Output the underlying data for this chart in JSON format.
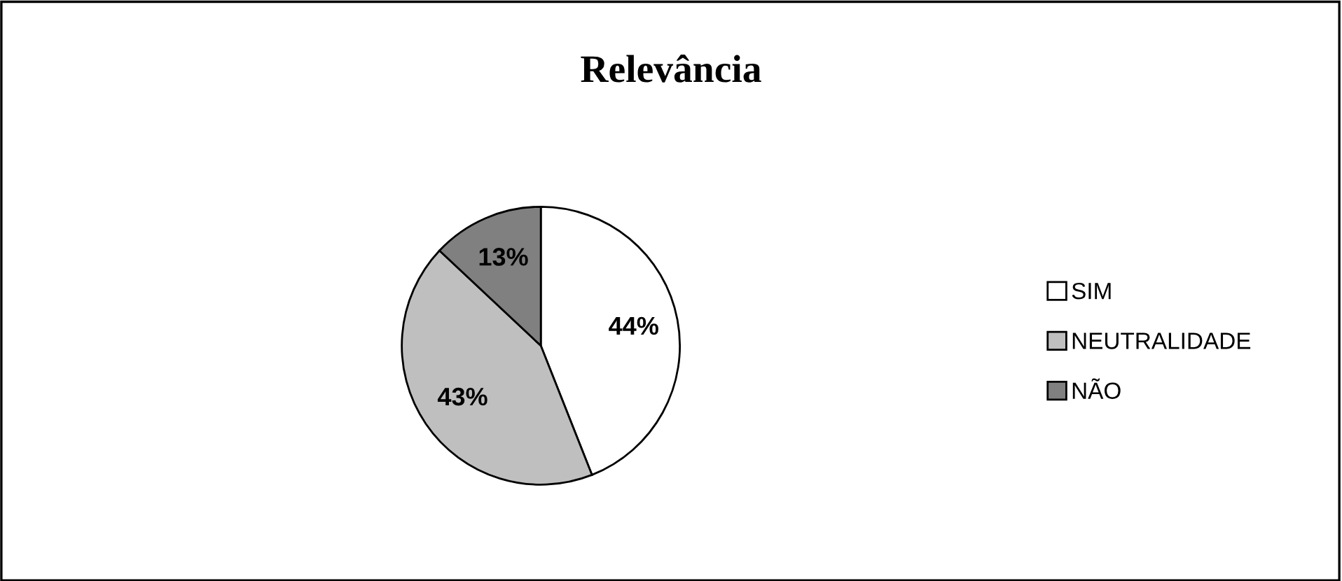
{
  "chart_data": {
    "type": "pie",
    "title": "Relevância",
    "categories": [
      "SIM",
      "NEUTRALIDADE",
      "NÃO"
    ],
    "values": [
      44,
      43,
      13
    ],
    "colors": [
      "#ffffff",
      "#bfbfbf",
      "#808080"
    ],
    "value_labels": [
      "44%",
      "43%",
      "13%"
    ],
    "legend": "right"
  }
}
